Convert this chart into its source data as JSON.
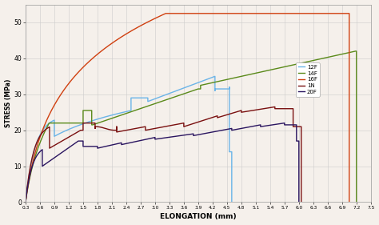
{
  "title": "",
  "xlabel": "ELONGATION (mm)",
  "ylabel": "STRESS (MPa)",
  "xlim": [
    0.3,
    7.5
  ],
  "ylim": [
    0,
    55
  ],
  "xticks": [
    0.3,
    0.6,
    0.9,
    1.2,
    1.5,
    1.8,
    2.1,
    2.4,
    2.7,
    3.0,
    3.3,
    3.6,
    3.9,
    4.2,
    4.5,
    4.8,
    5.1,
    5.4,
    5.7,
    6.0,
    6.3,
    6.6,
    6.9,
    7.2,
    7.5
  ],
  "yticks": [
    0,
    10,
    20,
    30,
    40,
    50
  ],
  "legend_labels": [
    "12F",
    "14F",
    "16F",
    "1N",
    "20F"
  ],
  "colors": {
    "12F": "#6ab4e8",
    "14F": "#5a8a1a",
    "16F": "#d04010",
    "1N": "#7a1010",
    "20F": "#2a1560"
  },
  "background_color": "#f5f0eb",
  "plot_bg": "#f5f0eb",
  "grid_color": "#cccccc"
}
